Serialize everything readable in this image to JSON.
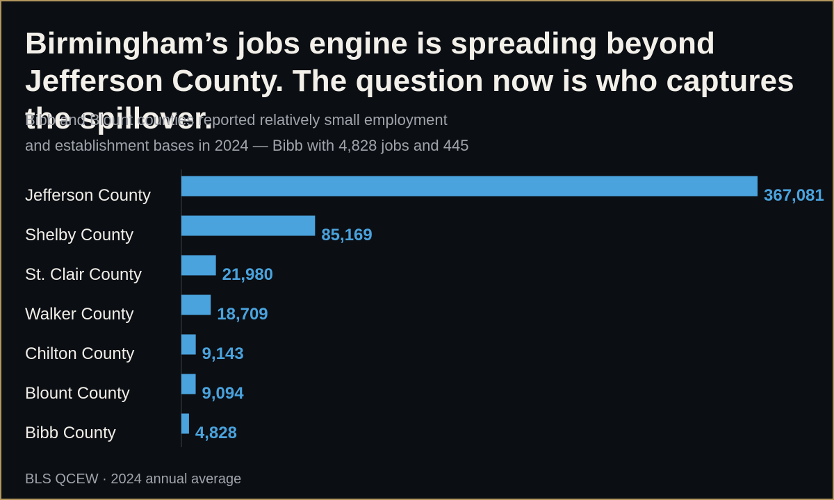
{
  "header": {
    "title": "Birmingham’s jobs engine is spreading beyond Jefferson County. The question now is who captures the spillover.",
    "subtitle_line1": "Bibb and Blount counties reported relatively small employment",
    "subtitle_line2": "and establishment bases in 2024 — Bibb with 4,828 jobs and 445"
  },
  "footer": {
    "source": "BLS QCEW · 2024 annual average"
  },
  "colors": {
    "background": "#0b0e13",
    "border": "#b3975d",
    "bar": "#4aa3dd",
    "axis": "#3a3f47"
  },
  "chart_data": {
    "type": "bar",
    "orientation": "horizontal",
    "categories": [
      "Jefferson County",
      "Shelby County",
      "St. Clair County",
      "Walker County",
      "Chilton County",
      "Blount County",
      "Bibb County"
    ],
    "values": [
      367081,
      85169,
      21980,
      18709,
      9143,
      9094,
      4828
    ],
    "value_labels": [
      "367,081",
      "85,169",
      "21,980",
      "18,709",
      "9,143",
      "9,094",
      "4,828"
    ],
    "xlim": [
      0,
      367081
    ],
    "grid": false,
    "legend": "none"
  }
}
